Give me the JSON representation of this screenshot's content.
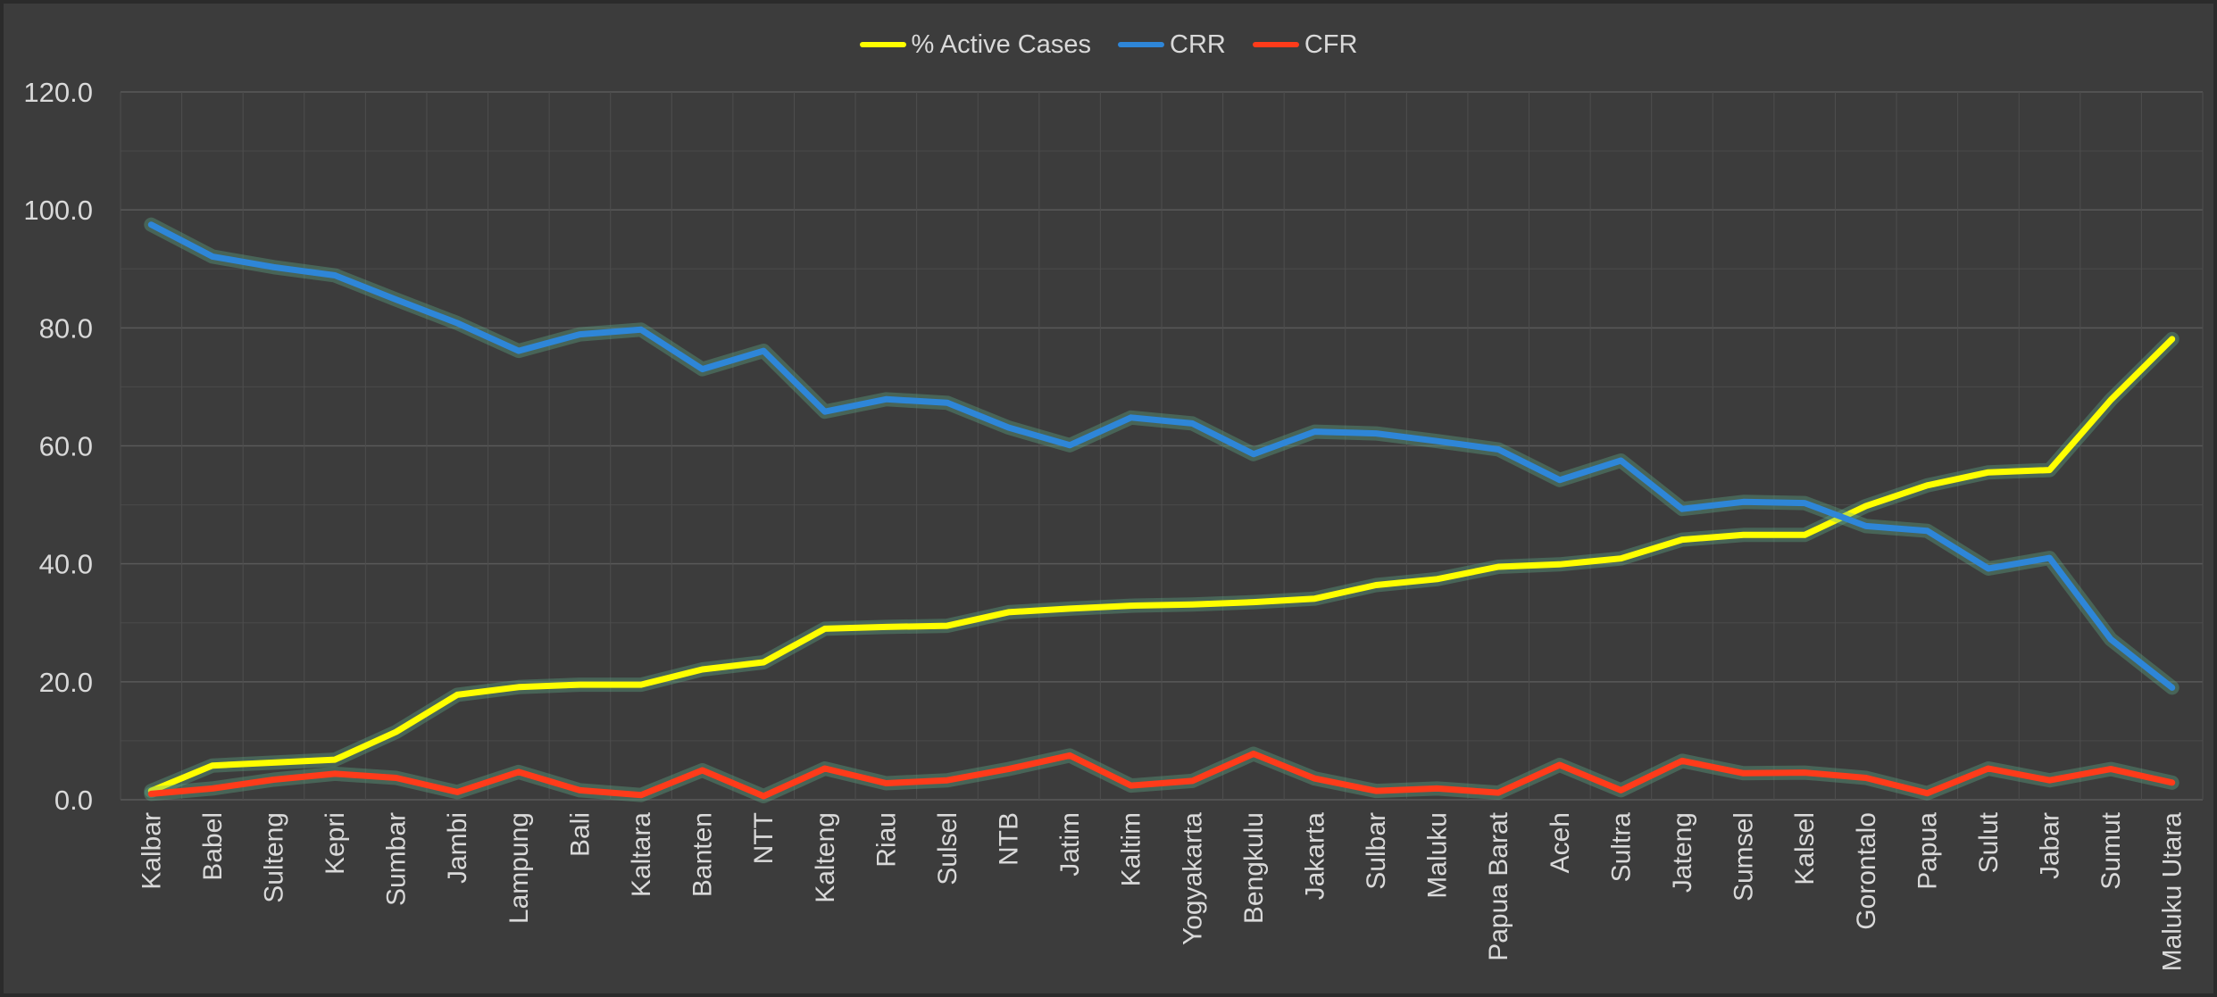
{
  "colors": {
    "background": "#3c3c3c",
    "gridline": "#595959",
    "axis_text": "#d9d9d9"
  },
  "chart_data": {
    "type": "line",
    "title": "",
    "xlabel": "",
    "ylabel": "",
    "ylim": [
      0,
      120
    ],
    "yticks": [
      "0.0",
      "20.0",
      "40.0",
      "60.0",
      "80.0",
      "100.0",
      "120.0"
    ],
    "grid": true,
    "legend": "top-center",
    "categories": [
      "Kalbar",
      "Babel",
      "Sulteng",
      "Kepri",
      "Sumbar",
      "Jambi",
      "Lampung",
      "Bali",
      "Kaltara",
      "Banten",
      "NTT",
      "Kalteng",
      "Riau",
      "Sulsel",
      "NTB",
      "Jatim",
      "Kaltim",
      "Yogyakarta",
      "Bengkulu",
      "Jakarta",
      "Sulbar",
      "Maluku",
      "Papua Barat",
      "Aceh",
      "Sultra",
      "Jateng",
      "Sumsel",
      "Kalsel",
      "Gorontalo",
      "Papua",
      "Sulut",
      "Jabar",
      "Sumut",
      "Maluku Utara"
    ],
    "series": [
      {
        "name": "% Active Cases",
        "color": "#ffff00",
        "values": [
          1.5,
          5.8,
          6.3,
          6.8,
          11.5,
          17.8,
          19.1,
          19.5,
          19.5,
          22.1,
          23.3,
          29.0,
          29.3,
          29.5,
          31.8,
          32.4,
          32.9,
          33.1,
          33.5,
          34.1,
          36.4,
          37.4,
          39.5,
          39.9,
          40.9,
          44.1,
          44.9,
          44.9,
          49.8,
          53.3,
          55.5,
          55.9,
          67.8,
          78.1
        ]
      },
      {
        "name": "CRR",
        "color": "#2e86d8",
        "values": [
          97.5,
          92.1,
          90.3,
          88.9,
          84.8,
          80.8,
          76.1,
          78.9,
          79.7,
          73.0,
          76.1,
          65.8,
          67.9,
          67.3,
          63.1,
          60.1,
          64.8,
          63.8,
          58.6,
          62.4,
          62.1,
          60.8,
          59.4,
          54.2,
          57.5,
          49.3,
          50.5,
          50.3,
          46.4,
          45.6,
          39.2,
          41.0,
          27.2,
          19.0
        ]
      },
      {
        "name": "CFR",
        "color": "#ff3b1a",
        "values": [
          1.0,
          1.9,
          3.4,
          4.4,
          3.7,
          1.3,
          4.7,
          1.6,
          0.8,
          5.0,
          0.6,
          5.3,
          2.8,
          3.3,
          5.2,
          7.5,
          2.4,
          3.2,
          7.8,
          3.6,
          1.5,
          1.9,
          1.2,
          5.9,
          1.6,
          6.6,
          4.5,
          4.6,
          3.7,
          1.1,
          5.3,
          3.3,
          5.2,
          2.9
        ]
      }
    ]
  }
}
